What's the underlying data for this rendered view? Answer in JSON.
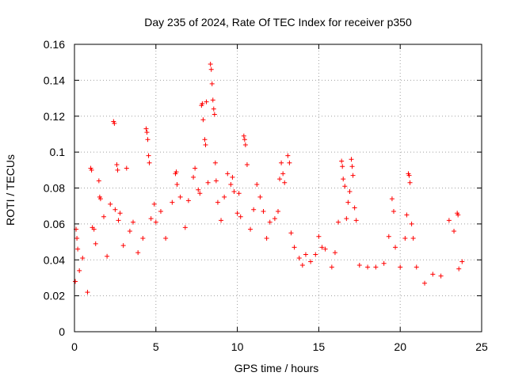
{
  "chart_data": {
    "type": "scatter",
    "title": "Day 235 of 2024, Rate Of TEC Index for receiver p350",
    "xlabel": "GPS time / hours",
    "ylabel": "ROTI / TECUs",
    "xlim": [
      0,
      25
    ],
    "ylim": [
      0,
      0.16
    ],
    "x_ticks": [
      "0",
      "5",
      "10",
      "15",
      "20",
      "25"
    ],
    "y_ticks": [
      "0",
      "0.02",
      "0.04",
      "0.06",
      "0.08",
      "0.1",
      "0.12",
      "0.14",
      "0.16"
    ],
    "x_tick_values": [
      0,
      5,
      10,
      15,
      20,
      25
    ],
    "y_tick_values": [
      0,
      0.02,
      0.04,
      0.06,
      0.08,
      0.1,
      0.12,
      0.14,
      0.16
    ],
    "grid": true,
    "marker": "+",
    "color": "#ff0000",
    "series": [
      {
        "name": "ROTI",
        "points": [
          [
            0.05,
            0.028
          ],
          [
            0.1,
            0.057
          ],
          [
            0.15,
            0.052
          ],
          [
            0.2,
            0.046
          ],
          [
            0.3,
            0.034
          ],
          [
            0.5,
            0.041
          ],
          [
            0.8,
            0.022
          ],
          [
            1.0,
            0.091
          ],
          [
            1.05,
            0.09
          ],
          [
            1.1,
            0.058
          ],
          [
            1.2,
            0.057
          ],
          [
            1.3,
            0.049
          ],
          [
            1.5,
            0.084
          ],
          [
            1.55,
            0.075
          ],
          [
            1.6,
            0.074
          ],
          [
            1.8,
            0.064
          ],
          [
            2.0,
            0.042
          ],
          [
            2.2,
            0.071
          ],
          [
            2.4,
            0.117
          ],
          [
            2.45,
            0.116
          ],
          [
            2.5,
            0.068
          ],
          [
            2.6,
            0.093
          ],
          [
            2.65,
            0.09
          ],
          [
            2.7,
            0.062
          ],
          [
            2.8,
            0.066
          ],
          [
            3.0,
            0.048
          ],
          [
            3.2,
            0.091
          ],
          [
            3.4,
            0.056
          ],
          [
            3.6,
            0.061
          ],
          [
            3.9,
            0.044
          ],
          [
            4.2,
            0.052
          ],
          [
            4.4,
            0.113
          ],
          [
            4.45,
            0.111
          ],
          [
            4.5,
            0.107
          ],
          [
            4.55,
            0.098
          ],
          [
            4.6,
            0.094
          ],
          [
            4.7,
            0.063
          ],
          [
            4.9,
            0.071
          ],
          [
            5.0,
            0.061
          ],
          [
            5.3,
            0.067
          ],
          [
            5.6,
            0.052
          ],
          [
            6.0,
            0.072
          ],
          [
            6.2,
            0.088
          ],
          [
            6.25,
            0.089
          ],
          [
            6.3,
            0.082
          ],
          [
            6.5,
            0.075
          ],
          [
            6.8,
            0.058
          ],
          [
            7.0,
            0.073
          ],
          [
            7.3,
            0.086
          ],
          [
            7.4,
            0.091
          ],
          [
            7.6,
            0.079
          ],
          [
            7.7,
            0.077
          ],
          [
            7.8,
            0.126
          ],
          [
            7.85,
            0.127
          ],
          [
            7.9,
            0.118
          ],
          [
            8.0,
            0.107
          ],
          [
            8.05,
            0.104
          ],
          [
            8.1,
            0.128
          ],
          [
            8.2,
            0.083
          ],
          [
            8.35,
            0.149
          ],
          [
            8.4,
            0.146
          ],
          [
            8.45,
            0.138
          ],
          [
            8.5,
            0.129
          ],
          [
            8.55,
            0.124
          ],
          [
            8.6,
            0.121
          ],
          [
            8.65,
            0.094
          ],
          [
            8.7,
            0.084
          ],
          [
            8.8,
            0.072
          ],
          [
            9.0,
            0.062
          ],
          [
            9.2,
            0.075
          ],
          [
            9.4,
            0.088
          ],
          [
            9.6,
            0.082
          ],
          [
            9.7,
            0.086
          ],
          [
            9.8,
            0.078
          ],
          [
            10.0,
            0.066
          ],
          [
            10.1,
            0.077
          ],
          [
            10.2,
            0.064
          ],
          [
            10.4,
            0.109
          ],
          [
            10.45,
            0.107
          ],
          [
            10.5,
            0.104
          ],
          [
            10.6,
            0.093
          ],
          [
            10.8,
            0.057
          ],
          [
            11.0,
            0.068
          ],
          [
            11.2,
            0.082
          ],
          [
            11.4,
            0.075
          ],
          [
            11.6,
            0.067
          ],
          [
            11.8,
            0.052
          ],
          [
            12.0,
            0.061
          ],
          [
            12.3,
            0.063
          ],
          [
            12.5,
            0.067
          ],
          [
            12.6,
            0.085
          ],
          [
            12.7,
            0.094
          ],
          [
            12.8,
            0.088
          ],
          [
            12.9,
            0.083
          ],
          [
            13.1,
            0.098
          ],
          [
            13.2,
            0.094
          ],
          [
            13.3,
            0.055
          ],
          [
            13.5,
            0.047
          ],
          [
            13.8,
            0.041
          ],
          [
            14.0,
            0.037
          ],
          [
            14.2,
            0.043
          ],
          [
            14.5,
            0.039
          ],
          [
            14.8,
            0.043
          ],
          [
            15.0,
            0.053
          ],
          [
            15.2,
            0.047
          ],
          [
            15.4,
            0.046
          ],
          [
            15.8,
            0.036
          ],
          [
            16.0,
            0.044
          ],
          [
            16.2,
            0.061
          ],
          [
            16.4,
            0.095
          ],
          [
            16.45,
            0.092
          ],
          [
            16.5,
            0.085
          ],
          [
            16.6,
            0.081
          ],
          [
            16.7,
            0.063
          ],
          [
            16.8,
            0.072
          ],
          [
            16.9,
            0.078
          ],
          [
            17.0,
            0.096
          ],
          [
            17.05,
            0.092
          ],
          [
            17.1,
            0.087
          ],
          [
            17.2,
            0.069
          ],
          [
            17.3,
            0.062
          ],
          [
            17.5,
            0.037
          ],
          [
            18.0,
            0.036
          ],
          [
            18.5,
            0.036
          ],
          [
            19.0,
            0.038
          ],
          [
            19.3,
            0.053
          ],
          [
            19.5,
            0.074
          ],
          [
            19.6,
            0.067
          ],
          [
            19.7,
            0.047
          ],
          [
            20.0,
            0.036
          ],
          [
            20.3,
            0.052
          ],
          [
            20.4,
            0.065
          ],
          [
            20.5,
            0.088
          ],
          [
            20.55,
            0.087
          ],
          [
            20.6,
            0.083
          ],
          [
            20.7,
            0.06
          ],
          [
            20.8,
            0.052
          ],
          [
            21.0,
            0.036
          ],
          [
            21.5,
            0.027
          ],
          [
            22.0,
            0.032
          ],
          [
            22.5,
            0.031
          ],
          [
            23.0,
            0.062
          ],
          [
            23.3,
            0.056
          ],
          [
            23.5,
            0.066
          ],
          [
            23.55,
            0.065
          ],
          [
            23.6,
            0.035
          ],
          [
            23.8,
            0.039
          ]
        ]
      }
    ]
  }
}
